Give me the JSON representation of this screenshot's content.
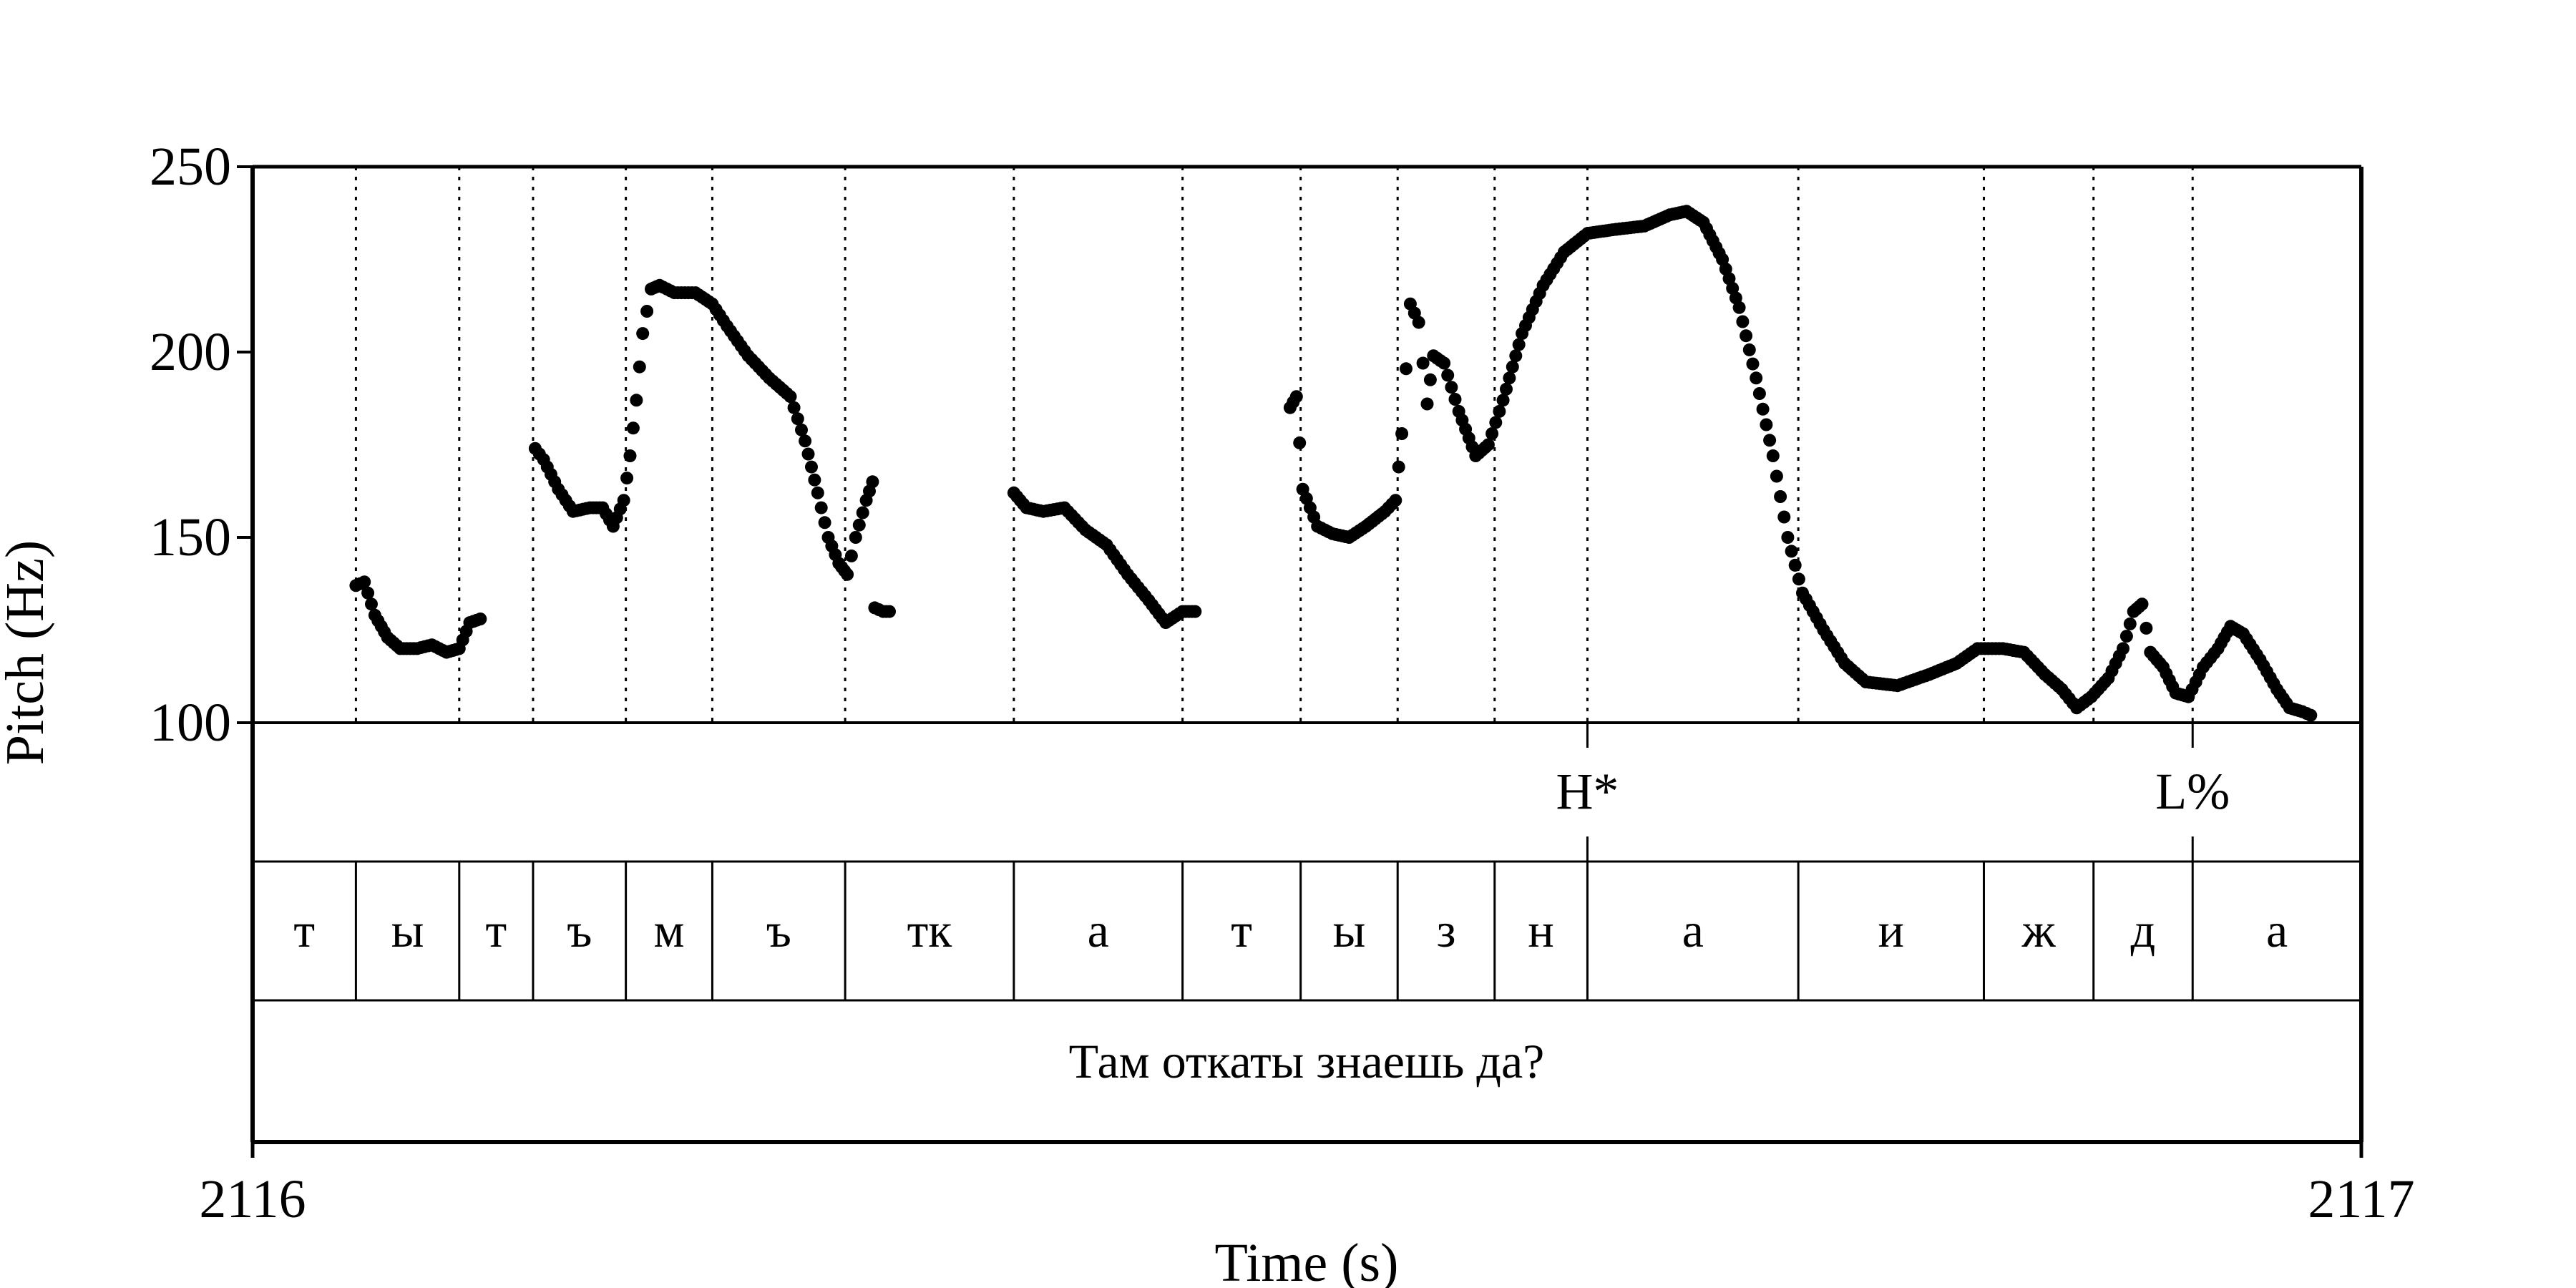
{
  "chart_data": {
    "type": "scatter",
    "xlabel": "Time (s)",
    "ylabel": "Pitch (Hz)",
    "xlim": [
      2116,
      2117
    ],
    "ylim": [
      100,
      250
    ],
    "x_ticks": [
      "2116",
      "2117"
    ],
    "y_ticks": [
      "100",
      "150",
      "200",
      "250"
    ],
    "grid": "dotted vertical lines at segment boundaries",
    "colors": {
      "points": "#000000",
      "lines": "#000000",
      "background": "#ffffff"
    },
    "segment_boundaries": [
      2116.049,
      2116.098,
      2116.133,
      2116.177,
      2116.218,
      2116.281,
      2116.361,
      2116.441,
      2116.497,
      2116.543,
      2116.589,
      2116.633,
      2116.733,
      2116.821,
      2116.873,
      2116.92
    ],
    "tones": [
      {
        "label": "H*",
        "time": 2116.633
      },
      {
        "label": "L%",
        "time": 2116.92
      }
    ],
    "segments": [
      {
        "label": "т",
        "start": 2116.0,
        "end": 2116.049
      },
      {
        "label": "ы",
        "start": 2116.049,
        "end": 2116.098
      },
      {
        "label": "т",
        "start": 2116.098,
        "end": 2116.133
      },
      {
        "label": "ъ",
        "start": 2116.133,
        "end": 2116.177
      },
      {
        "label": "м",
        "start": 2116.177,
        "end": 2116.218
      },
      {
        "label": "ъ",
        "start": 2116.218,
        "end": 2116.281
      },
      {
        "label": "тк",
        "start": 2116.281,
        "end": 2116.361
      },
      {
        "label": "а",
        "start": 2116.361,
        "end": 2116.441
      },
      {
        "label": "т",
        "start": 2116.441,
        "end": 2116.497
      },
      {
        "label": "ы",
        "start": 2116.497,
        "end": 2116.543
      },
      {
        "label": "з",
        "start": 2116.543,
        "end": 2116.589
      },
      {
        "label": "н",
        "start": 2116.589,
        "end": 2116.633
      },
      {
        "label": "а",
        "start": 2116.633,
        "end": 2116.733
      },
      {
        "label": "и",
        "start": 2116.733,
        "end": 2116.821
      },
      {
        "label": "ж",
        "start": 2116.821,
        "end": 2116.873
      },
      {
        "label": "д",
        "start": 2116.873,
        "end": 2116.92
      },
      {
        "label": "а",
        "start": 2116.92,
        "end": 2117.0
      }
    ],
    "sentence": "Там откаты знаешь да?",
    "pitch_anchors": [
      [
        [
          2116.049,
          137
        ],
        [
          2116.053,
          138
        ],
        [
          2116.058,
          129
        ],
        [
          2116.064,
          123
        ],
        [
          2116.07,
          120
        ],
        [
          2116.078,
          120
        ],
        [
          2116.085,
          121
        ],
        [
          2116.092,
          119
        ],
        [
          2116.098,
          120
        ],
        [
          2116.103,
          127
        ],
        [
          2116.108,
          128
        ]
      ],
      [
        [
          2116.134,
          174
        ],
        [
          2116.138,
          171
        ],
        [
          2116.145,
          163
        ],
        [
          2116.152,
          157
        ],
        [
          2116.16,
          158
        ],
        [
          2116.166,
          158
        ],
        [
          2116.171,
          153
        ],
        [
          2116.176,
          160
        ],
        [
          2116.179,
          172
        ],
        [
          2116.182,
          187
        ],
        [
          2116.185,
          205
        ],
        [
          2116.189,
          217
        ],
        [
          2116.193,
          218
        ],
        [
          2116.2,
          216
        ],
        [
          2116.21,
          216
        ],
        [
          2116.218,
          213
        ],
        [
          2116.225,
          207
        ],
        [
          2116.235,
          199
        ],
        [
          2116.245,
          193
        ],
        [
          2116.255,
          188
        ],
        [
          2116.262,
          176
        ],
        [
          2116.268,
          162
        ],
        [
          2116.273,
          150
        ],
        [
          2116.278,
          143
        ],
        [
          2116.282,
          140
        ],
        [
          2116.286,
          150
        ],
        [
          2116.291,
          160
        ],
        [
          2116.294,
          165
        ]
      ],
      [
        [
          2116.295,
          131
        ],
        [
          2116.299,
          130
        ],
        [
          2116.302,
          130
        ]
      ],
      [
        [
          2116.361,
          162
        ],
        [
          2116.367,
          158
        ],
        [
          2116.375,
          157
        ],
        [
          2116.385,
          158
        ],
        [
          2116.395,
          152
        ],
        [
          2116.405,
          148
        ],
        [
          2116.415,
          140
        ],
        [
          2116.425,
          133
        ],
        [
          2116.433,
          127
        ],
        [
          2116.441,
          130
        ],
        [
          2116.447,
          130
        ]
      ],
      [
        [
          2116.492,
          185
        ],
        [
          2116.495,
          188
        ],
        [
          2116.498,
          163
        ],
        [
          2116.505,
          153
        ],
        [
          2116.512,
          151
        ],
        [
          2116.52,
          150
        ],
        [
          2116.528,
          153
        ],
        [
          2116.537,
          157
        ],
        [
          2116.542,
          160
        ],
        [
          2116.545,
          178
        ],
        [
          2116.549,
          213
        ],
        [
          2116.553,
          208
        ],
        [
          2116.557,
          186
        ],
        [
          2116.56,
          199
        ],
        [
          2116.565,
          197
        ],
        [
          2116.572,
          184
        ],
        [
          2116.58,
          172
        ],
        [
          2116.586,
          175
        ],
        [
          2116.593,
          187
        ],
        [
          2116.602,
          205
        ],
        [
          2116.612,
          218
        ],
        [
          2116.622,
          227
        ],
        [
          2116.633,
          232
        ],
        [
          2116.645,
          233
        ],
        [
          2116.66,
          234
        ],
        [
          2116.672,
          237
        ],
        [
          2116.68,
          238
        ],
        [
          2116.688,
          235
        ],
        [
          2116.697,
          225
        ],
        [
          2116.705,
          212
        ],
        [
          2116.713,
          193
        ],
        [
          2116.721,
          172
        ],
        [
          2116.728,
          150
        ],
        [
          2116.735,
          135
        ],
        [
          2116.745,
          125
        ],
        [
          2116.755,
          116
        ],
        [
          2116.765,
          111
        ],
        [
          2116.78,
          110
        ],
        [
          2116.795,
          113
        ],
        [
          2116.808,
          116
        ],
        [
          2116.818,
          120
        ],
        [
          2116.83,
          120
        ],
        [
          2116.84,
          119
        ],
        [
          2116.85,
          113
        ],
        [
          2116.858,
          109
        ],
        [
          2116.865,
          104
        ],
        [
          2116.872,
          107
        ],
        [
          2116.88,
          112
        ],
        [
          2116.887,
          120
        ],
        [
          2116.892,
          130
        ],
        [
          2116.896,
          132
        ],
        [
          2116.9,
          119
        ],
        [
          2116.906,
          115
        ],
        [
          2116.912,
          108
        ],
        [
          2116.918,
          107
        ],
        [
          2116.925,
          115
        ],
        [
          2116.932,
          120
        ],
        [
          2116.938,
          126
        ],
        [
          2116.944,
          124
        ],
        [
          2116.952,
          117
        ],
        [
          2116.96,
          109
        ],
        [
          2116.966,
          104
        ],
        [
          2116.972,
          103
        ],
        [
          2116.976,
          102
        ]
      ]
    ]
  }
}
